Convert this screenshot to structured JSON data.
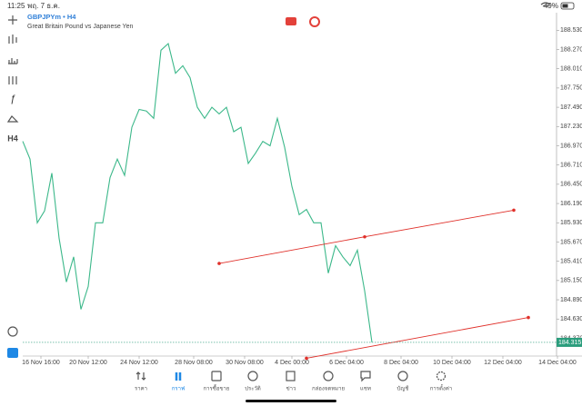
{
  "status_bar": {
    "time": "11:25",
    "date": "พฤ. 7 ธ.ค.",
    "battery": "49%"
  },
  "toolbar": {
    "timeframe": "H4"
  },
  "chart_data": {
    "type": "line",
    "title": "GBPJPYm • H4",
    "subtitle": "Great Britain Pound vs Japanese Yen",
    "color": "#3cb88a",
    "x": [
      0,
      2,
      4,
      6,
      8,
      10,
      12,
      14,
      16,
      18,
      20,
      22,
      24,
      26,
      28,
      30,
      32,
      34,
      36,
      38,
      40,
      42,
      44,
      46,
      48,
      50,
      52,
      54,
      56,
      58,
      60,
      62,
      64,
      66,
      68,
      70,
      72,
      74,
      76,
      78,
      80,
      82,
      84,
      86,
      88,
      90,
      92,
      94,
      96
    ],
    "values": [
      187.03,
      186.79,
      185.93,
      186.09,
      186.6,
      185.72,
      185.13,
      185.47,
      184.76,
      185.07,
      185.93,
      185.93,
      186.54,
      186.79,
      186.57,
      187.22,
      187.46,
      187.44,
      187.34,
      188.26,
      188.35,
      187.95,
      188.05,
      187.89,
      187.49,
      187.34,
      187.49,
      187.4,
      187.49,
      187.16,
      187.22,
      186.73,
      186.87,
      187.03,
      186.97,
      187.34,
      186.95,
      186.42,
      186.04,
      186.11,
      185.93,
      185.93,
      185.25,
      185.62,
      185.47,
      185.35,
      185.56,
      185.01,
      184.315
    ],
    "xlim": [
      0,
      148
    ],
    "xticks": [
      {
        "value": 5,
        "label": "16 Nov 16:00"
      },
      {
        "value": 18,
        "label": "20 Nov 12:00"
      },
      {
        "value": 32,
        "label": "24 Nov 12:00"
      },
      {
        "value": 47,
        "label": "28 Nov 08:00"
      },
      {
        "value": 61,
        "label": "30 Nov 08:00"
      },
      {
        "value": 74,
        "label": "4 Dec 00:00"
      },
      {
        "value": 89,
        "label": "6 Dec 04:00"
      },
      {
        "value": 104,
        "label": "8 Dec 04:00"
      },
      {
        "value": 118,
        "label": "10 Dec 04:00"
      },
      {
        "value": 132,
        "label": "12 Dec 04:00"
      },
      {
        "value": 147,
        "label": "14 Dec 04:00"
      }
    ],
    "ylim": [
      184.13,
      188.73
    ],
    "yticks": [
      {
        "value": 188.53,
        "label": "188.530"
      },
      {
        "value": 188.27,
        "label": "188.270"
      },
      {
        "value": 188.01,
        "label": "188.010"
      },
      {
        "value": 187.75,
        "label": "187.750"
      },
      {
        "value": 187.49,
        "label": "187.490"
      },
      {
        "value": 187.23,
        "label": "187.230"
      },
      {
        "value": 186.97,
        "label": "186.970"
      },
      {
        "value": 186.71,
        "label": "186.710"
      },
      {
        "value": 186.45,
        "label": "186.450"
      },
      {
        "value": 186.19,
        "label": "186.190"
      },
      {
        "value": 185.93,
        "label": "185.930"
      },
      {
        "value": 185.67,
        "label": "185.670"
      },
      {
        "value": 185.41,
        "label": "185.410"
      },
      {
        "value": 185.15,
        "label": "185.150"
      },
      {
        "value": 184.89,
        "label": "184.890"
      },
      {
        "value": 184.63,
        "label": "184.630"
      },
      {
        "value": 184.37,
        "label": "184.370"
      }
    ],
    "grid": false,
    "current_price": 184.315,
    "current_price_color": "#2a9d7c",
    "trend_lines": [
      {
        "color": "#e0302a",
        "x": [
          54,
          94,
          135
        ],
        "values": [
          185.38,
          185.74,
          186.1
        ]
      },
      {
        "color": "#e0302a",
        "x": [
          78,
          139
        ],
        "values": [
          184.1,
          184.65
        ]
      }
    ]
  },
  "bottom_nav": [
    "ราคา",
    "กราฟ",
    "การซื้อขาย",
    "ประวัติ",
    "ข่าว",
    "กล่องจดหมาย",
    "แชท",
    "บัญชี",
    "การตั้งค่า"
  ]
}
